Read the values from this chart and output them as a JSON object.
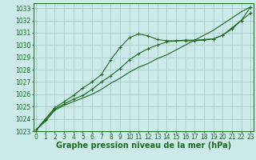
{
  "background_color": "#cceaea",
  "grid_color": "#aacccc",
  "line_color": "#1a6e1a",
  "marker_color": "#1a6e1a",
  "title": "Graphe pression niveau de la mer (hPa)",
  "title_fontsize": 7,
  "tick_fontsize": 5.5,
  "xlim": [
    -0.3,
    23.3
  ],
  "ylim": [
    1023,
    1033.4
  ],
  "yticks": [
    1023,
    1024,
    1025,
    1026,
    1027,
    1028,
    1029,
    1030,
    1031,
    1032,
    1033
  ],
  "xticks": [
    0,
    1,
    2,
    3,
    4,
    5,
    6,
    7,
    8,
    9,
    10,
    11,
    12,
    13,
    14,
    15,
    16,
    17,
    18,
    19,
    20,
    21,
    22,
    23
  ],
  "series1_x": [
    0,
    1,
    2,
    3,
    4,
    5,
    6,
    7,
    8,
    9,
    10,
    11,
    12,
    13,
    14,
    15,
    16,
    17,
    18,
    19,
    20,
    21,
    22,
    23
  ],
  "series1_y": [
    1023.1,
    1023.8,
    1024.7,
    1025.1,
    1025.4,
    1025.7,
    1026.0,
    1026.4,
    1026.9,
    1027.3,
    1027.8,
    1028.2,
    1028.5,
    1028.9,
    1029.2,
    1029.6,
    1030.0,
    1030.4,
    1030.8,
    1031.2,
    1031.7,
    1032.2,
    1032.7,
    1033.1
  ],
  "series2_x": [
    0,
    1,
    2,
    3,
    4,
    5,
    6,
    7,
    8,
    9,
    10,
    11,
    12,
    13,
    14,
    15,
    16,
    17,
    18,
    19,
    20,
    21,
    22,
    23
  ],
  "series2_y": [
    1023.1,
    1023.9,
    1024.8,
    1025.2,
    1025.6,
    1025.9,
    1026.4,
    1027.0,
    1027.5,
    1028.1,
    1028.8,
    1029.3,
    1029.7,
    1030.0,
    1030.25,
    1030.35,
    1030.4,
    1030.4,
    1030.45,
    1030.5,
    1030.8,
    1031.4,
    1032.0,
    1032.6
  ],
  "series3_x": [
    0,
    1,
    2,
    3,
    4,
    5,
    6,
    7,
    8,
    9,
    10,
    11,
    12,
    13,
    14,
    15,
    16,
    17,
    18,
    19,
    20,
    21,
    22,
    23
  ],
  "series3_y": [
    1023.1,
    1024.0,
    1024.9,
    1025.4,
    1025.9,
    1026.5,
    1027.0,
    1027.6,
    1028.8,
    1029.8,
    1030.6,
    1030.9,
    1030.75,
    1030.45,
    1030.35,
    1030.35,
    1030.35,
    1030.35,
    1030.4,
    1030.5,
    1030.8,
    1031.3,
    1032.0,
    1033.1
  ]
}
